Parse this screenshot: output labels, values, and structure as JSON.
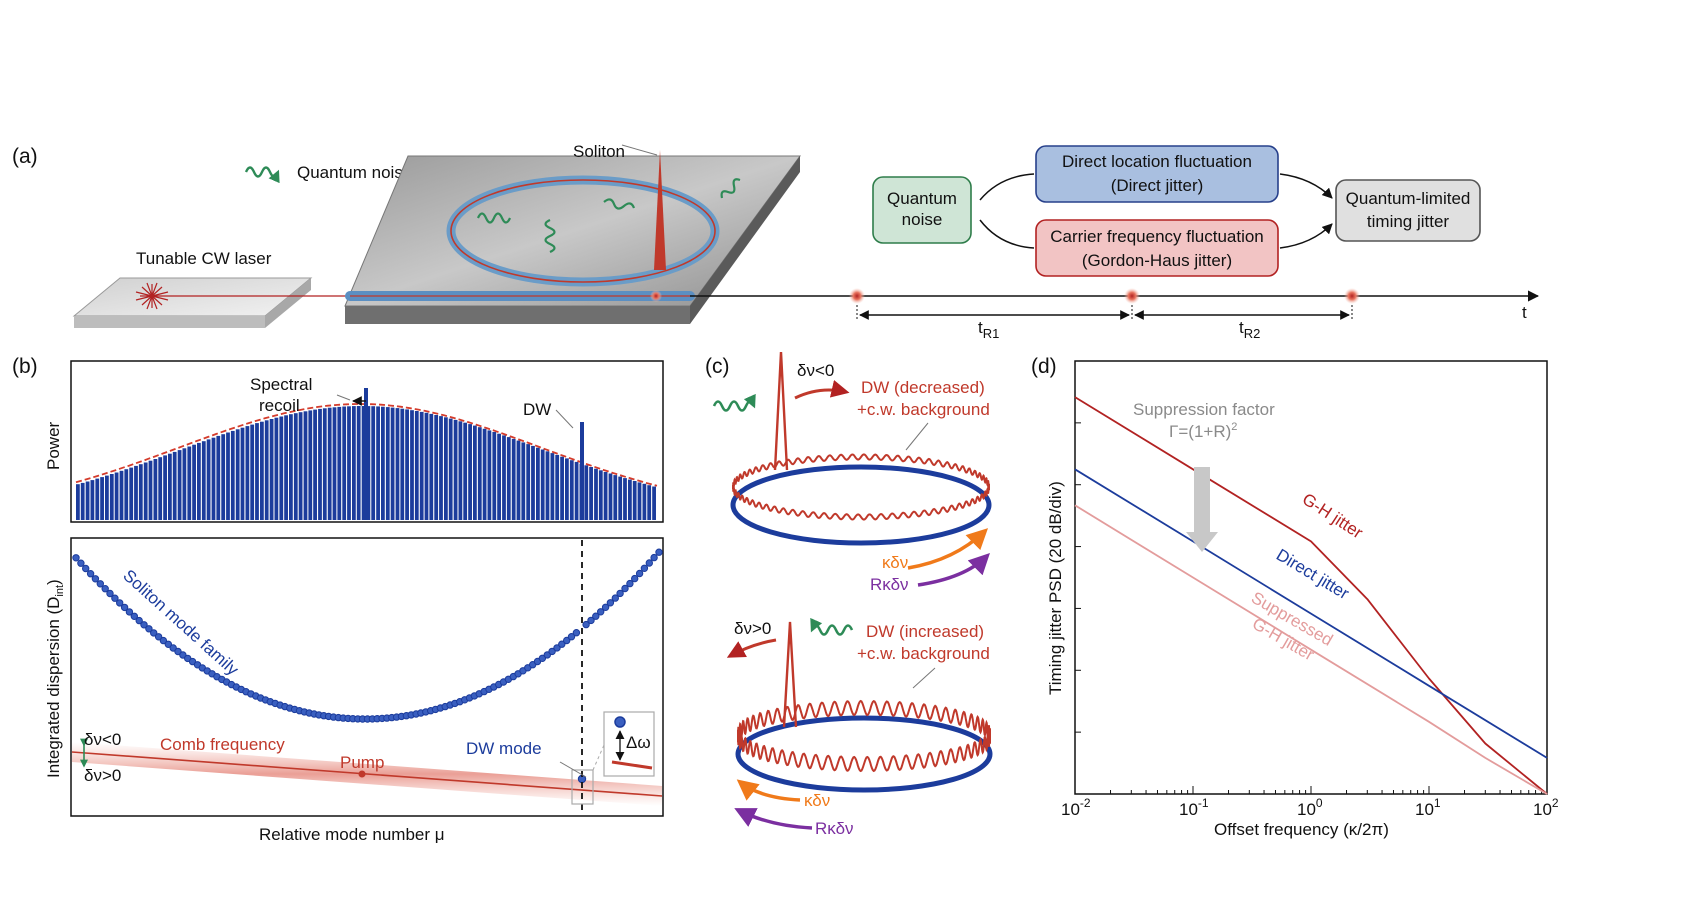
{
  "panels": {
    "a": "(a)",
    "b": "(b)",
    "c": "(c)",
    "d": "(d)"
  },
  "panel_a": {
    "quantum_noise_label": "Quantum noise",
    "laser_label": "Tunable CW laser",
    "soliton_label": "Soliton",
    "time_axis": "t",
    "tr1": "t",
    "tr1_sub": "R1",
    "tr2": "t",
    "tr2_sub": "R2",
    "flow": {
      "quantum_noise": [
        "Quantum",
        "noise"
      ],
      "direct": [
        "Direct location fluctuation",
        "(Direct jitter)"
      ],
      "gh": [
        "Carrier frequency fluctuation",
        "(Gordon-Haus jitter)"
      ],
      "limited": [
        "Quantum-limited",
        "timing jitter"
      ]
    },
    "colors": {
      "green_fill": "#cfe5d6",
      "green_stroke": "#2e7d4a",
      "blue_fill": "#a9bfe0",
      "blue_stroke": "#27408b",
      "red_fill": "#f2c4c4",
      "red_stroke": "#b22222",
      "gray_fill": "#e0e0e0",
      "gray_stroke": "#555555"
    }
  },
  "panel_b": {
    "power_axis": "Power",
    "spectral_recoil": [
      "Spectral",
      "recoil"
    ],
    "dw": "DW",
    "dispersion_axis": "Integrated dispersion (D",
    "dispersion_sub": "int",
    "dispersion_close": ")",
    "soliton_family": "Soliton mode family",
    "comb_frequency": "Comb frequency",
    "pump": "Pump",
    "dw_mode": "DW mode",
    "dv_neg": "δν<0",
    "dv_pos": "δν>0",
    "delta_omega": "Δω",
    "x_axis": "Relative mode number μ"
  },
  "panel_c": {
    "top_dv": "δν<0",
    "top_dw": [
      "DW (decreased)",
      "+c.w. background"
    ],
    "kdv": "κδν",
    "rkdv": "Rκδν",
    "bottom_dv": "δν>0",
    "bottom_dw": [
      "DW (increased)",
      "+c.w. background"
    ]
  },
  "panel_d": {
    "y_axis": "Timing jitter PSD (20 dB/div)",
    "x_axis": "Offset frequency (κ/2π)",
    "suppression": "Suppression factor",
    "gamma": "Γ=(1+R)",
    "gamma_sup": "2",
    "gh_label": "G-H jitter",
    "direct_label": "Direct jitter",
    "suppressed_label": [
      "Suppressed",
      "G-H jitter"
    ],
    "x_ticks": [
      {
        "base": "10",
        "exp": "-2"
      },
      {
        "base": "10",
        "exp": "-1"
      },
      {
        "base": "10",
        "exp": "0"
      },
      {
        "base": "10",
        "exp": "1"
      },
      {
        "base": "10",
        "exp": "2"
      }
    ]
  },
  "chart_data": {
    "type": "line",
    "xlabel": "Offset frequency (κ/2π)",
    "ylabel": "Timing jitter PSD (20 dB/div)",
    "xscale": "log",
    "xlim": [
      0.01,
      100
    ],
    "ylim_dB": [
      -120,
      0
    ],
    "series": [
      {
        "name": "G-H jitter",
        "color": "#b22222",
        "x": [
          0.01,
          0.1,
          1,
          3,
          10,
          30,
          100
        ],
        "y": [
          -10,
          -30,
          -50,
          -66,
          -88,
          -106,
          -120
        ]
      },
      {
        "name": "Direct jitter",
        "color": "#1c3c9c",
        "x": [
          0.01,
          0.1,
          1,
          10,
          100
        ],
        "y": [
          -30,
          -50,
          -70,
          -90,
          -110
        ]
      },
      {
        "name": "Suppressed G-H jitter",
        "color": "#e39c9c",
        "x": [
          0.01,
          0.1,
          1,
          10,
          30,
          100
        ],
        "y": [
          -40,
          -60,
          -80,
          -100,
          -110,
          -120
        ]
      }
    ]
  }
}
